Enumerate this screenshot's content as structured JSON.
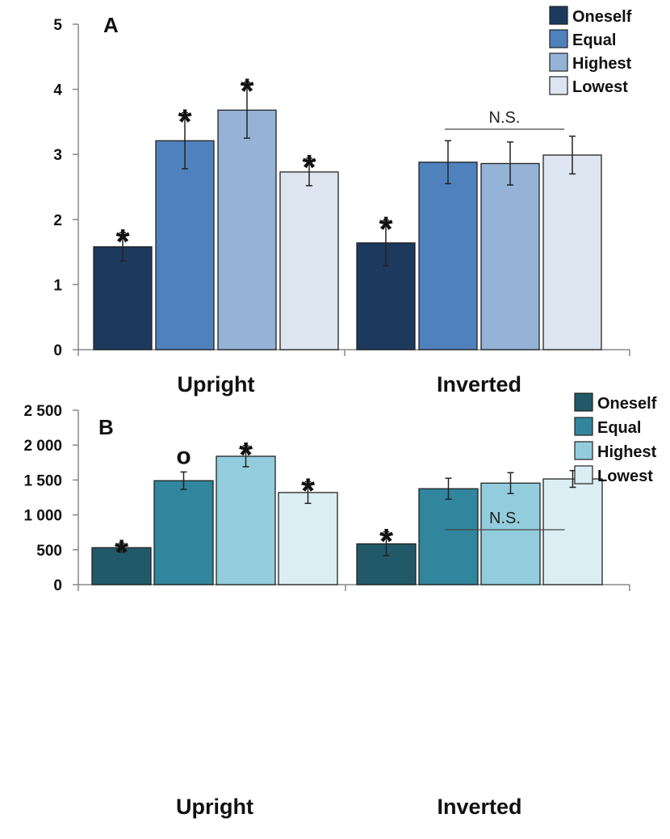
{
  "chart_data": [
    {
      "type": "bar",
      "panel_label": "A",
      "categories": [
        "Upright",
        "Inverted"
      ],
      "ylim": [
        0,
        5
      ],
      "yticks": [
        0,
        1,
        2,
        3,
        4,
        5
      ],
      "ytick_labels": [
        "0",
        "1",
        "2",
        "3",
        "4",
        "5"
      ],
      "series": [
        {
          "name": "Oneself",
          "color": "#1c3a5e",
          "values": [
            1.58,
            1.64
          ],
          "errors": [
            0.22,
            0.35
          ],
          "markers": [
            "*",
            "*"
          ]
        },
        {
          "name": "Equal",
          "color": "#4f81bd",
          "values": [
            3.21,
            2.88
          ],
          "errors": [
            0.43,
            0.33
          ],
          "markers": [
            "*",
            ""
          ]
        },
        {
          "name": "Highest",
          "color": "#95b3d7",
          "values": [
            3.68,
            2.86
          ],
          "errors": [
            0.43,
            0.33
          ],
          "markers": [
            "*",
            ""
          ]
        },
        {
          "name": "Lowest",
          "color": "#dde5f0",
          "values": [
            2.73,
            2.99
          ],
          "errors": [
            0.21,
            0.29
          ],
          "markers": [
            "*",
            ""
          ]
        }
      ],
      "annotation": {
        "text": "N.S.",
        "category": "Inverted"
      },
      "legend_position": "top-right",
      "grid": false
    },
    {
      "type": "bar",
      "panel_label": "B",
      "categories": [
        "Upright",
        "Inverted"
      ],
      "ylim": [
        0,
        2500
      ],
      "yticks": [
        0,
        500,
        1000,
        1500,
        2000,
        2500
      ],
      "ytick_labels": [
        "0",
        "500",
        "1 000",
        "1 500",
        "2 000",
        "2 500"
      ],
      "series": [
        {
          "name": "Oneself",
          "color": "#215968",
          "values": [
            530,
            585
          ],
          "errors": [
            65,
            170
          ],
          "markers": [
            "*",
            "*"
          ]
        },
        {
          "name": "Equal",
          "color": "#31859c",
          "values": [
            1490,
            1375
          ],
          "errors": [
            125,
            150
          ],
          "markers": [
            "o",
            ""
          ]
        },
        {
          "name": "Highest",
          "color": "#93cddd",
          "values": [
            1840,
            1455
          ],
          "errors": [
            150,
            150
          ],
          "markers": [
            "*",
            ""
          ]
        },
        {
          "name": "Lowest",
          "color": "#daeef3",
          "values": [
            1320,
            1515
          ],
          "errors": [
            155,
            120
          ],
          "markers": [
            "*",
            ""
          ]
        }
      ],
      "annotation": {
        "text": "N.S.",
        "category": "Inverted"
      },
      "legend_position": "top-right",
      "grid": false
    }
  ]
}
